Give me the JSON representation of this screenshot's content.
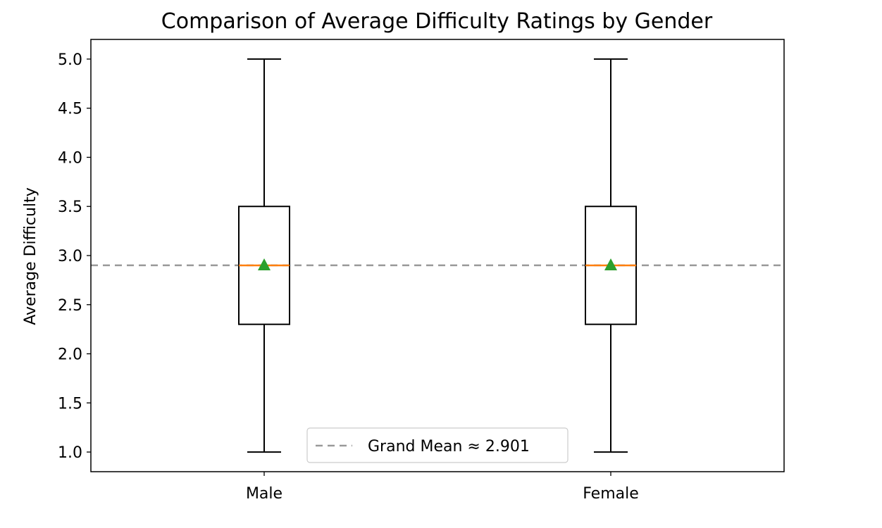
{
  "chart_data": {
    "type": "box",
    "title": "Comparison of Average Difficulty Ratings by Gender",
    "xlabel": "",
    "ylabel": "Average Difficulty",
    "categories": [
      "Male",
      "Female"
    ],
    "boxes": [
      {
        "category": "Male",
        "whisker_low": 1.0,
        "q1": 2.3,
        "median": 2.9,
        "q3": 3.5,
        "whisker_high": 5.0,
        "mean": 2.9
      },
      {
        "category": "Female",
        "whisker_low": 1.0,
        "q1": 2.3,
        "median": 2.9,
        "q3": 3.5,
        "whisker_high": 5.0,
        "mean": 2.9
      }
    ],
    "reference_line": {
      "value": 2.901,
      "style": "dashed",
      "label": "Grand Mean ≈ 2.901"
    },
    "ylim": [
      0.8,
      5.2
    ],
    "yticks": [
      "1.0",
      "1.5",
      "2.0",
      "2.5",
      "3.0",
      "3.5",
      "4.0",
      "4.5",
      "5.0"
    ],
    "grid": false,
    "legend_position": "bottom-center",
    "colors": {
      "box": "#000000",
      "median": "#ff7f0e",
      "mean_marker": "#2ca02c",
      "reference_line": "#999999"
    }
  }
}
